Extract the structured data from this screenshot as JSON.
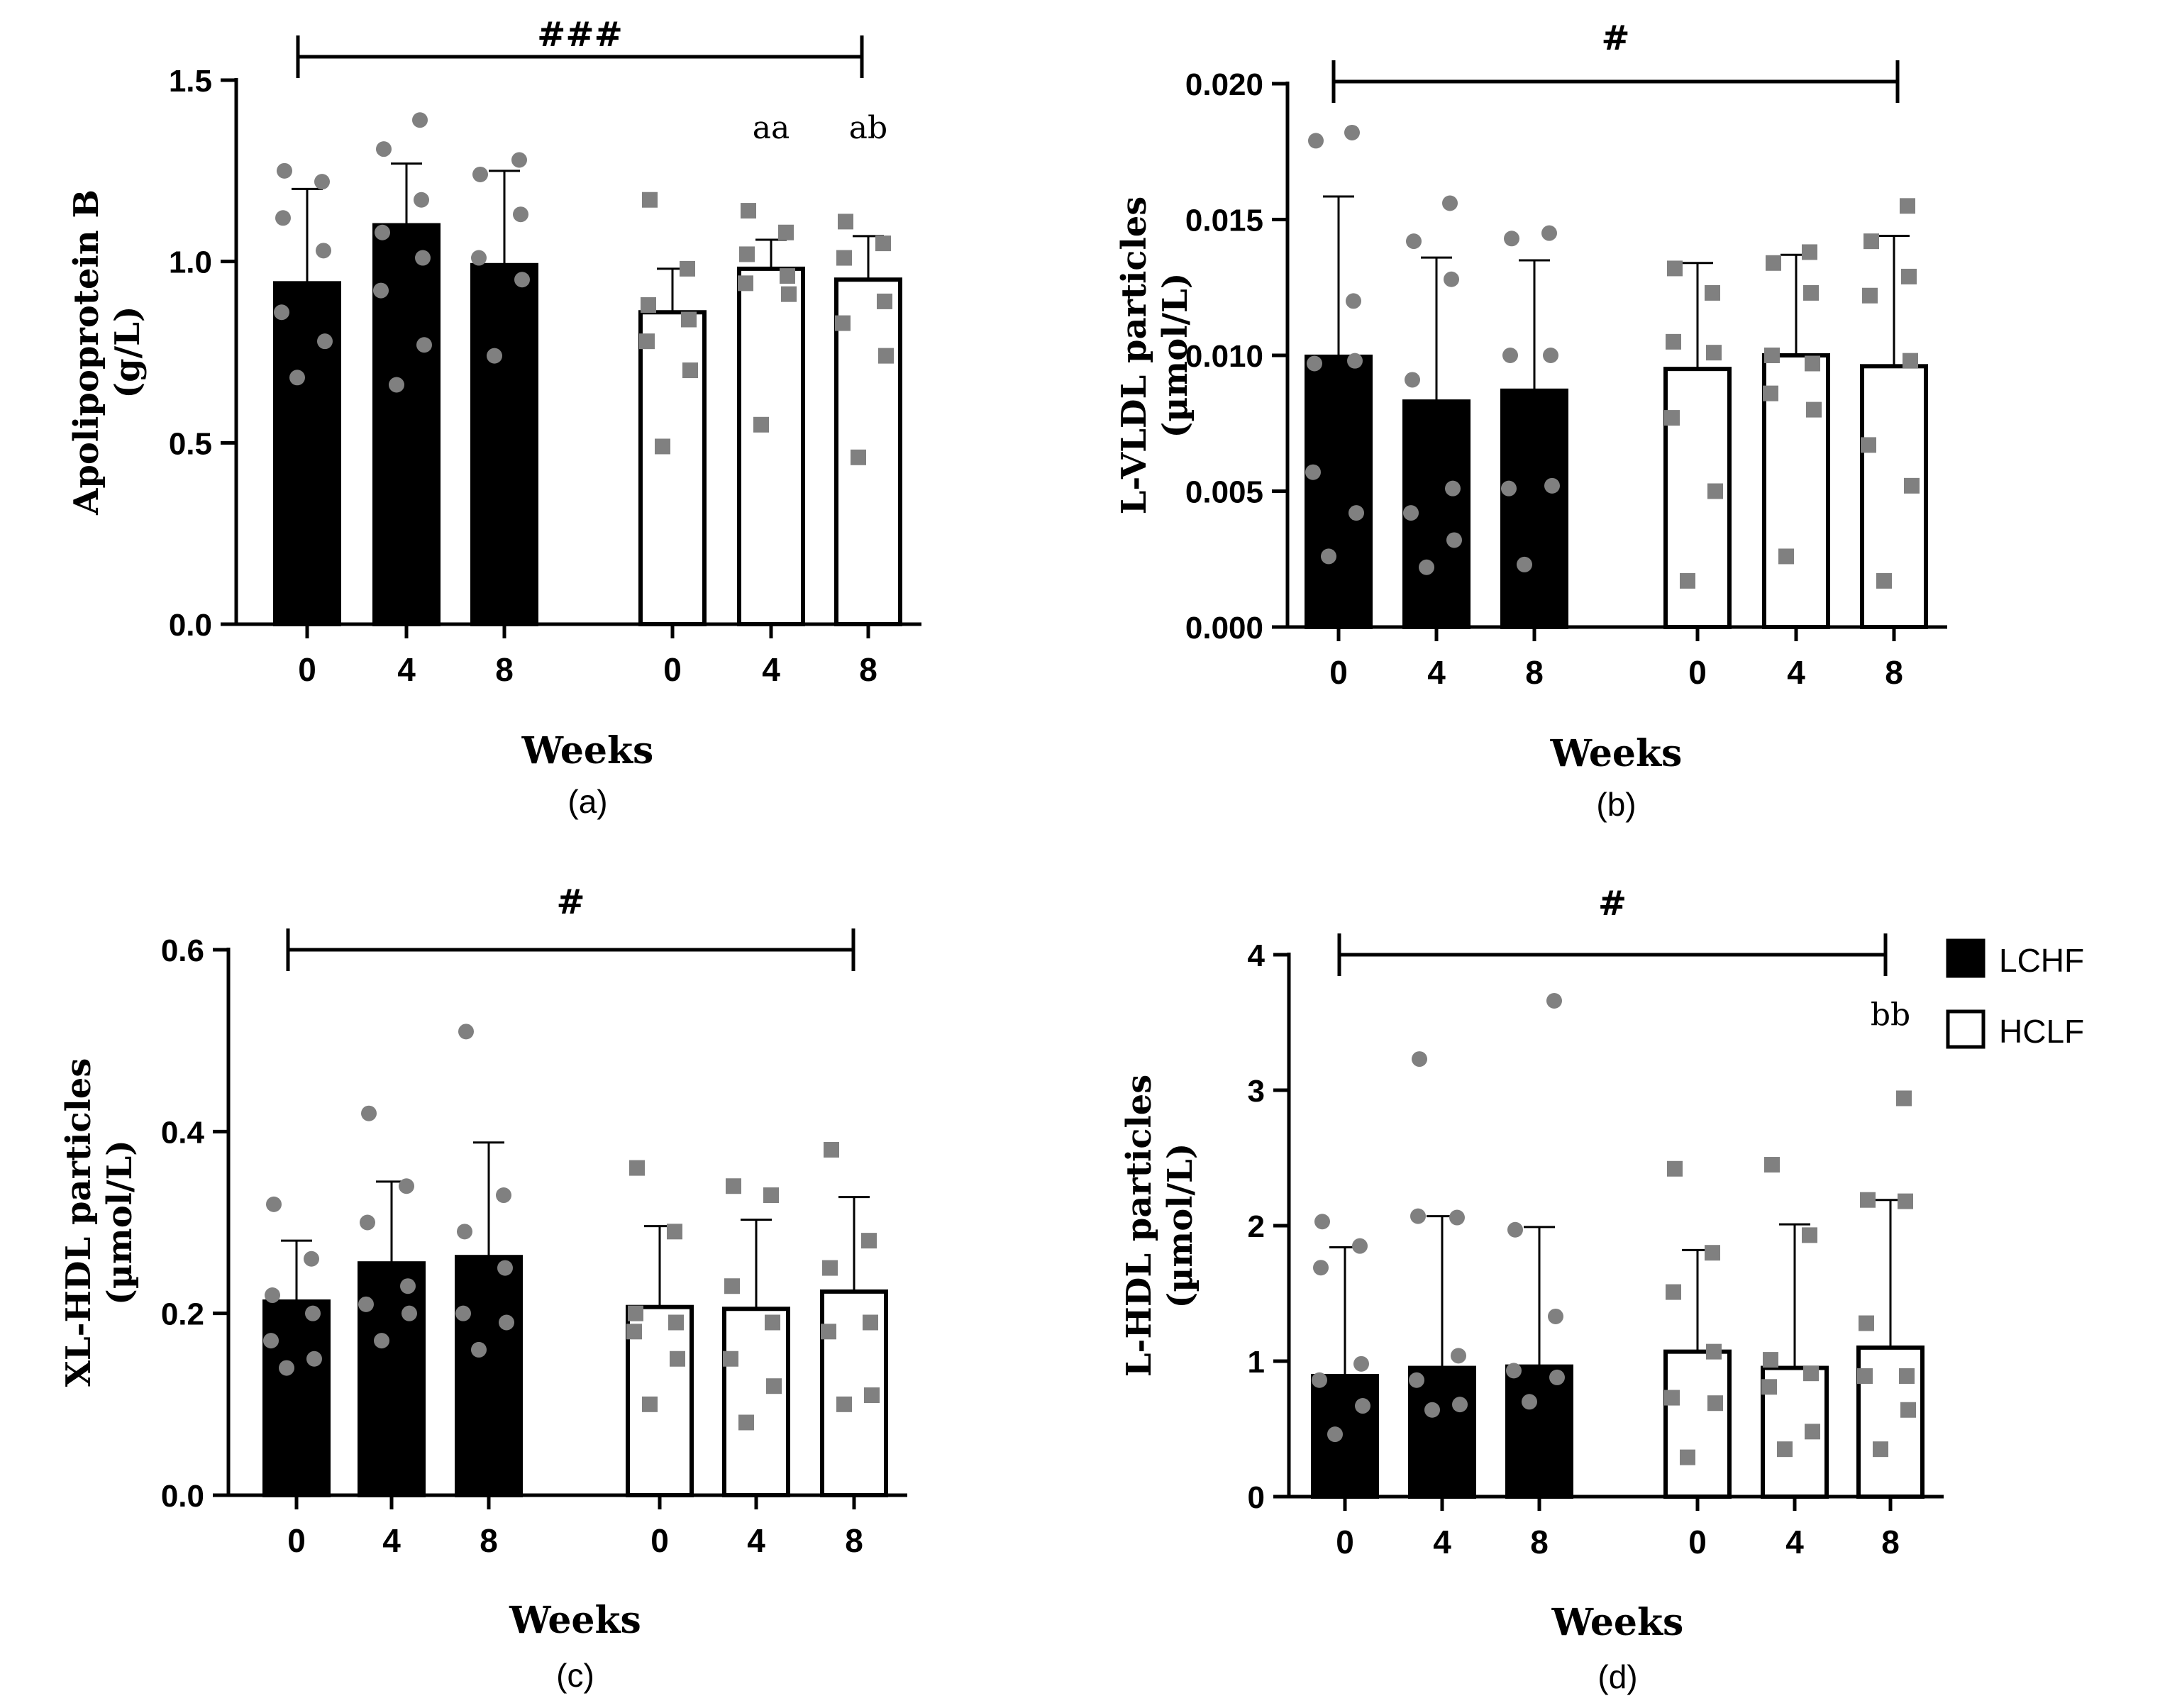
{
  "colors": {
    "lchf_fill": "#000000",
    "hclf_fill": "#ffffff",
    "point": "#808080",
    "axis": "#000000"
  },
  "legend": {
    "items": [
      {
        "label": "LCHF",
        "fill": "#000000"
      },
      {
        "label": "HCLF",
        "fill": "#ffffff"
      }
    ]
  },
  "chart_data": [
    {
      "id": "a",
      "type": "bar",
      "caption": "(a)",
      "ylabel": [
        "Apolipoprotein B",
        "(g/L)"
      ],
      "xlabel": "Weeks",
      "ylim": [
        0,
        1.5
      ],
      "yticks": [
        "0.0",
        "0.5",
        "1.0",
        "1.5"
      ],
      "categories": [
        "0",
        "4",
        "8",
        "0",
        "4",
        "8"
      ],
      "groups": [
        "LCHF",
        "LCHF",
        "LCHF",
        "HCLF",
        "HCLF",
        "HCLF"
      ],
      "values": [
        0.94,
        1.1,
        0.99,
        0.86,
        0.98,
        0.95
      ],
      "errors": [
        0.26,
        0.17,
        0.26,
        0.12,
        0.08,
        0.12
      ],
      "points": [
        [
          0.68,
          0.78,
          0.86,
          1.03,
          1.12,
          1.22,
          1.25
        ],
        [
          0.66,
          0.77,
          0.92,
          1.01,
          1.08,
          1.17,
          1.31,
          1.39
        ],
        [
          0.74,
          0.95,
          1.01,
          1.13,
          1.24,
          1.28
        ],
        [
          0.49,
          0.7,
          0.78,
          0.84,
          0.88,
          0.98,
          1.17
        ],
        [
          0.55,
          0.91,
          0.94,
          0.96,
          1.02,
          1.08,
          1.14
        ],
        [
          0.46,
          0.74,
          0.83,
          0.89,
          1.01,
          1.05,
          1.11
        ]
      ],
      "annotations": [
        {
          "text": "aa",
          "index": 4,
          "y": 1.34
        },
        {
          "text": "ab",
          "index": 5,
          "y": 1.34
        }
      ],
      "bracket": {
        "text": "###",
        "y": 1.5
      }
    },
    {
      "id": "b",
      "type": "bar",
      "caption": "(b)",
      "ylabel": [
        "L-VLDL particles",
        "(µmol/L)"
      ],
      "xlabel": "Weeks",
      "ylim": [
        0,
        0.02
      ],
      "yticks": [
        "0.000",
        "0.005",
        "0.010",
        "0.015",
        "0.020"
      ],
      "categories": [
        "0",
        "4",
        "8",
        "0",
        "4",
        "8"
      ],
      "groups": [
        "LCHF",
        "LCHF",
        "LCHF",
        "HCLF",
        "HCLF",
        "HCLF"
      ],
      "values": [
        0.00995,
        0.0083,
        0.0087,
        0.0095,
        0.01,
        0.0096
      ],
      "errors": [
        0.0059,
        0.0053,
        0.0048,
        0.0039,
        0.0037,
        0.0048
      ],
      "points": [
        [
          0.0026,
          0.0042,
          0.0057,
          0.0098,
          0.0097,
          0.012,
          0.0179,
          0.0182
        ],
        [
          0.0022,
          0.0032,
          0.0042,
          0.0051,
          0.0091,
          0.0128,
          0.0142,
          0.0156
        ],
        [
          0.0023,
          0.0052,
          0.0051,
          0.01,
          0.01,
          0.0145,
          0.0143
        ],
        [
          0.0017,
          0.005,
          0.0077,
          0.0101,
          0.0105,
          0.0123,
          0.0132
        ],
        [
          0.0026,
          0.008,
          0.0086,
          0.0097,
          0.01,
          0.0123,
          0.0134,
          0.0138
        ],
        [
          0.0017,
          0.0052,
          0.0067,
          0.0098,
          0.0122,
          0.0129,
          0.0142,
          0.0155
        ]
      ],
      "annotations": [],
      "bracket": {
        "text": "#",
        "y": 0.02
      }
    },
    {
      "id": "c",
      "type": "bar",
      "caption": "(c)",
      "ylabel": [
        "XL-HDL particles",
        "(µmol/L)"
      ],
      "xlabel": "Weeks",
      "ylim": [
        0,
        0.6
      ],
      "yticks": [
        "0.0",
        "0.2",
        "0.4",
        "0.6"
      ],
      "categories": [
        "0",
        "4",
        "8",
        "0",
        "4",
        "8"
      ],
      "groups": [
        "LCHF",
        "LCHF",
        "LCHF",
        "HCLF",
        "HCLF",
        "HCLF"
      ],
      "values": [
        0.213,
        0.255,
        0.262,
        0.207,
        0.205,
        0.224
      ],
      "errors": [
        0.067,
        0.09,
        0.126,
        0.089,
        0.098,
        0.104
      ],
      "points": [
        [
          0.14,
          0.15,
          0.17,
          0.2,
          0.22,
          0.26,
          0.32
        ],
        [
          0.17,
          0.2,
          0.21,
          0.23,
          0.3,
          0.34,
          0.42
        ],
        [
          0.16,
          0.19,
          0.2,
          0.25,
          0.29,
          0.33,
          0.51
        ],
        [
          0.1,
          0.15,
          0.18,
          0.19,
          0.2,
          0.29,
          0.36
        ],
        [
          0.08,
          0.12,
          0.15,
          0.19,
          0.23,
          0.33,
          0.34
        ],
        [
          0.1,
          0.11,
          0.18,
          0.19,
          0.25,
          0.28,
          0.38
        ]
      ],
      "annotations": [],
      "bracket": {
        "text": "#",
        "y": 0.6
      }
    },
    {
      "id": "d",
      "type": "bar",
      "caption": "(d)",
      "ylabel": [
        "L-HDL particles",
        "(µmol/L)"
      ],
      "xlabel": "Weeks",
      "ylim": [
        0,
        4
      ],
      "yticks": [
        "0",
        "1",
        "2",
        "3",
        "4"
      ],
      "categories": [
        "0",
        "4",
        "8",
        "0",
        "4",
        "8"
      ],
      "groups": [
        "LCHF",
        "LCHF",
        "LCHF",
        "HCLF",
        "HCLF",
        "HCLF"
      ],
      "values": [
        0.89,
        0.95,
        0.96,
        1.07,
        0.95,
        1.1
      ],
      "errors": [
        0.95,
        1.12,
        1.03,
        0.75,
        1.06,
        1.09
      ],
      "points": [
        [
          0.46,
          0.67,
          0.86,
          0.98,
          1.69,
          1.85,
          2.03
        ],
        [
          0.64,
          0.68,
          0.86,
          1.04,
          2.07,
          2.06,
          3.23
        ],
        [
          0.7,
          0.88,
          0.93,
          1.33,
          1.97,
          3.66
        ],
        [
          0.29,
          0.69,
          0.73,
          1.07,
          1.51,
          1.8,
          2.42
        ],
        [
          0.35,
          0.48,
          0.81,
          0.91,
          1.01,
          1.93,
          2.45
        ],
        [
          0.35,
          0.64,
          0.89,
          0.89,
          1.28,
          2.18,
          2.19,
          2.94
        ]
      ],
      "annotations": [
        {
          "text": "bb",
          "index": 5,
          "y": 3.48
        }
      ],
      "bracket": {
        "text": "#",
        "y": 4
      }
    }
  ]
}
